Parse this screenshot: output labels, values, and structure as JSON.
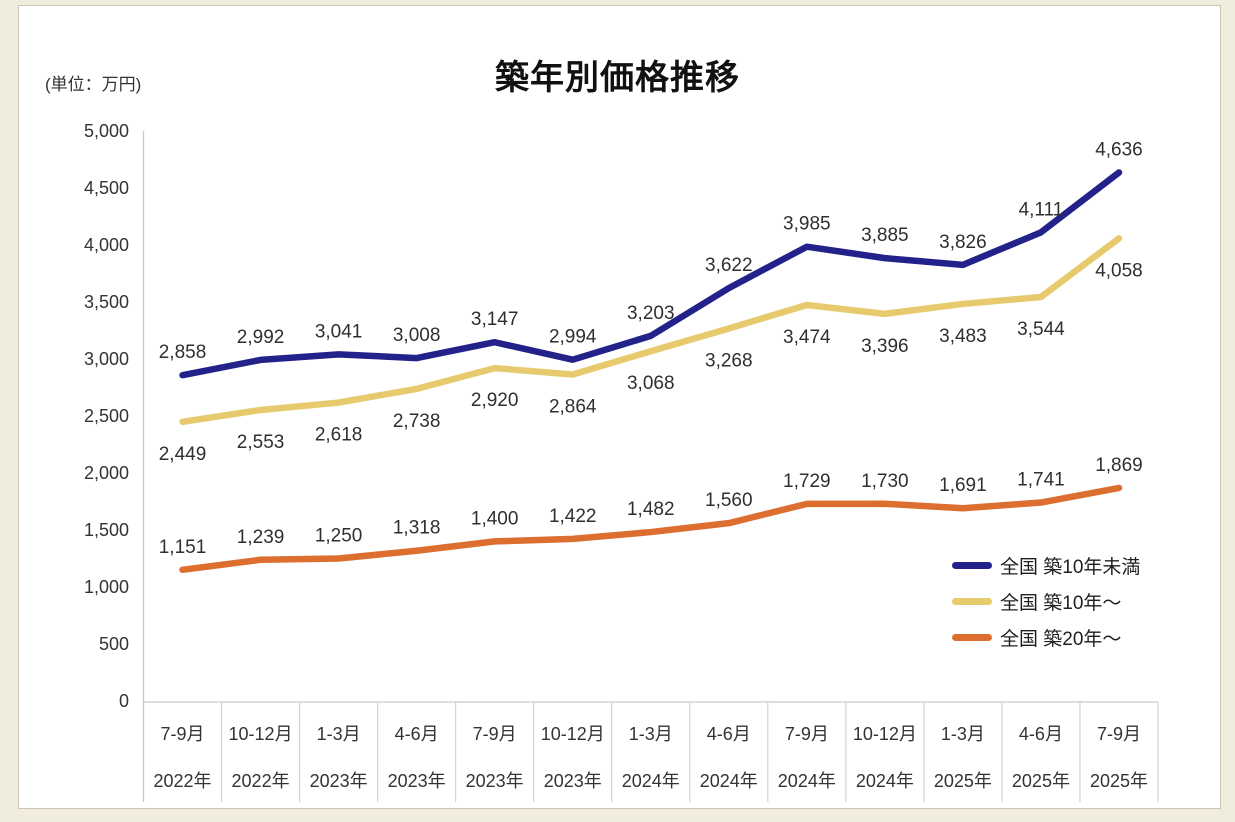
{
  "chart_data": {
    "type": "line",
    "title": "築年別価格推移",
    "unit_label": "(単位：万円)",
    "legend_position": "inside-right-bottom",
    "grid": false,
    "y_axis": {
      "min": 0,
      "max": 5000,
      "step": 500,
      "tick_labels": [
        "0",
        "500",
        "1,000",
        "1,500",
        "2,000",
        "2,500",
        "3,000",
        "3,500",
        "4,000",
        "4,500",
        "5,000"
      ]
    },
    "categories": [
      {
        "quarter": "7-9月",
        "year": "2022年"
      },
      {
        "quarter": "10-12月",
        "year": "2022年"
      },
      {
        "quarter": "1-3月",
        "year": "2023年"
      },
      {
        "quarter": "4-6月",
        "year": "2023年"
      },
      {
        "quarter": "7-9月",
        "year": "2023年"
      },
      {
        "quarter": "10-12月",
        "year": "2023年"
      },
      {
        "quarter": "1-3月",
        "year": "2024年"
      },
      {
        "quarter": "4-6月",
        "year": "2024年"
      },
      {
        "quarter": "7-9月",
        "year": "2024年"
      },
      {
        "quarter": "10-12月",
        "year": "2024年"
      },
      {
        "quarter": "1-3月",
        "year": "2025年"
      },
      {
        "quarter": "4-6月",
        "year": "2025年"
      },
      {
        "quarter": "7-9月",
        "year": "2025年"
      }
    ],
    "series": [
      {
        "name": "全国 築10年未満",
        "color": "#22228a",
        "label_position": "above",
        "values": [
          2858,
          2992,
          3041,
          3008,
          3147,
          2994,
          3203,
          3622,
          3985,
          3885,
          3826,
          4111,
          4636
        ],
        "labels": [
          "2,858",
          "2,992",
          "3,041",
          "3,008",
          "3,147",
          "2,994",
          "3,203",
          "3,622",
          "3,985",
          "3,885",
          "3,826",
          "4,111",
          "4,636"
        ]
      },
      {
        "name": "全国 築10年～",
        "color": "#e8ca6e",
        "label_position": "below",
        "values": [
          2449,
          2553,
          2618,
          2738,
          2920,
          2864,
          3068,
          3268,
          3474,
          3396,
          3483,
          3544,
          4058
        ],
        "labels": [
          "2,449",
          "2,553",
          "2,618",
          "2,738",
          "2,920",
          "2,864",
          "3,068",
          "3,268",
          "3,474",
          "3,396",
          "3,483",
          "3,544",
          "4,058"
        ]
      },
      {
        "name": "全国 築20年～",
        "color": "#dc6e2f",
        "label_position": "above",
        "values": [
          1151,
          1239,
          1250,
          1318,
          1400,
          1422,
          1482,
          1560,
          1729,
          1730,
          1691,
          1741,
          1869
        ],
        "labels": [
          "1,151",
          "1,239",
          "1,250",
          "1,318",
          "1,400",
          "1,422",
          "1,482",
          "1,560",
          "1,729",
          "1,730",
          "1,691",
          "1,741",
          "1,869"
        ]
      }
    ]
  }
}
